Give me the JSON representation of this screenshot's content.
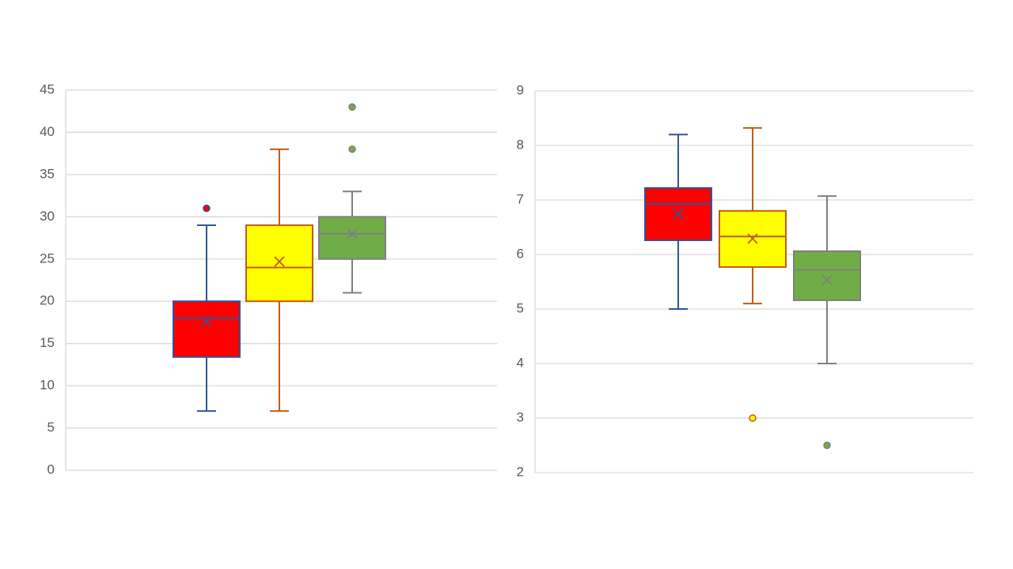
{
  "chart_data": [
    {
      "type": "box",
      "ylim": [
        0,
        45
      ],
      "yticks": [
        0,
        5,
        10,
        15,
        20,
        25,
        30,
        35,
        40,
        45
      ],
      "grid": true,
      "series": [
        {
          "color": "#ff0000",
          "edge_color": "#2f5597",
          "min": 7,
          "q1": 13.4,
          "median": 18,
          "q3": 20,
          "max": 29,
          "mean": 17.6,
          "outliers": [
            31
          ]
        },
        {
          "color": "#ffff00",
          "edge_color": "#c55a11",
          "min": 7,
          "q1": 20,
          "median": 24,
          "q3": 29,
          "max": 38,
          "mean": 24.7,
          "outliers": []
        },
        {
          "color": "#70ad47",
          "edge_color": "#7f7f7f",
          "min": 21,
          "q1": 25,
          "median": 28,
          "q3": 30,
          "max": 33,
          "mean": 28,
          "outliers": [
            38,
            43
          ]
        }
      ]
    },
    {
      "type": "box",
      "ylim": [
        2,
        9
      ],
      "yticks": [
        2,
        3,
        4,
        5,
        6,
        7,
        8,
        9
      ],
      "grid": true,
      "series": [
        {
          "color": "#ff0000",
          "edge_color": "#2f5597",
          "min": 5.0,
          "q1": 6.26,
          "median": 6.93,
          "q3": 7.22,
          "max": 8.2,
          "mean": 6.75,
          "outliers": []
        },
        {
          "color": "#ffff00",
          "edge_color": "#c55a11",
          "min": 5.1,
          "q1": 5.77,
          "median": 6.33,
          "q3": 6.8,
          "max": 8.32,
          "mean": 6.29,
          "outliers": [
            3.0
          ]
        },
        {
          "color": "#70ad47",
          "edge_color": "#7f7f7f",
          "min": 4.0,
          "q1": 5.16,
          "median": 5.72,
          "q3": 6.06,
          "max": 7.07,
          "mean": 5.53,
          "outliers": [
            2.5
          ]
        }
      ]
    }
  ]
}
